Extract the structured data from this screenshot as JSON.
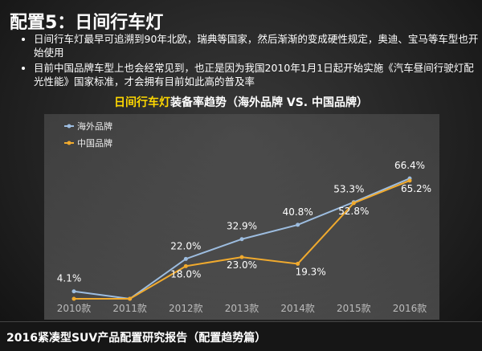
{
  "header": {
    "title": "配置5：日间行车灯"
  },
  "bullets": [
    "日间行车灯最早可追溯到90年北欧，瑞典等国家，然后渐渐的变成硬性规定，奥迪、宝马等车型也开始使用",
    "目前中国品牌车型上也会经常见到，也正是因为我国2010年1月1日起开始实施《汽车昼间行驶灯配光性能》国家标准，才会拥有目前如此高的普及率"
  ],
  "chart_data": {
    "type": "line",
    "title_highlight": "日间行车灯",
    "title": "装备率趋势（海外品牌 VS. 中国品牌）",
    "categories": [
      "2010款",
      "2011款",
      "2012款",
      "2013款",
      "2014款",
      "2015款",
      "2016款"
    ],
    "ylim": [
      0,
      70
    ],
    "series": [
      {
        "name": "海外品牌",
        "color": "#9dbde0",
        "values": [
          4.1,
          0,
          22.0,
          32.9,
          40.8,
          53.3,
          66.4
        ],
        "value_labels": [
          "4.1%",
          null,
          "22.0%",
          "32.9%",
          "40.8%",
          "53.3%",
          "66.4%"
        ]
      },
      {
        "name": "中国品牌",
        "color": "#f0aa2e",
        "values": [
          0,
          0,
          18.0,
          23.0,
          19.3,
          52.8,
          65.2
        ],
        "value_labels": [
          null,
          null,
          "18.0%",
          "23.0%",
          "19.3%",
          "52.8%",
          "65.2%"
        ]
      }
    ]
  },
  "footer": "2016紧凑型SUV产品配置研究报告（配置趋势篇）"
}
